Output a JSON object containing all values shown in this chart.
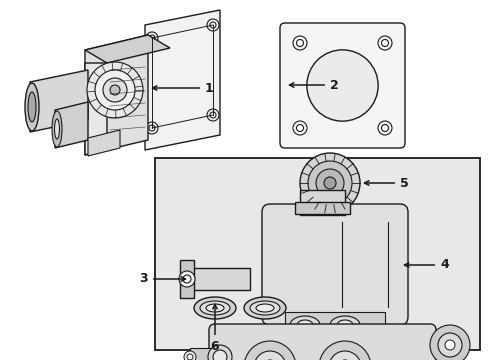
{
  "bg_color": "#ffffff",
  "box_bg": "#e8e8e8",
  "line_color": "#1a1a1a",
  "fill_light": "#f0f0f0",
  "fill_mid": "#d8d8d8",
  "fill_dark": "#b8b8b8",
  "figsize": [
    4.89,
    3.6
  ],
  "dpi": 100,
  "item1_label": "1",
  "item2_label": "2",
  "item3_label": "3",
  "item4_label": "4",
  "item5_label": "5",
  "item6_label": "6"
}
